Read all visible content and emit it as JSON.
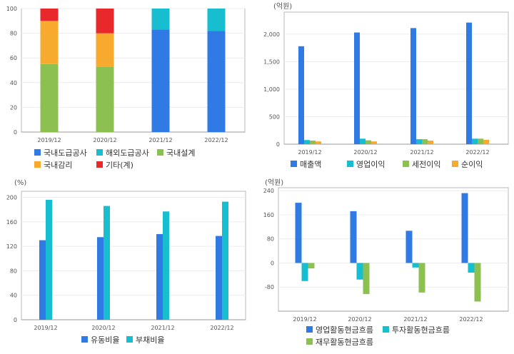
{
  "chart_data": [
    {
      "type": "bar",
      "stacked": true,
      "categories": [
        "2019/12",
        "2020/12",
        "2021/12",
        "2022/12"
      ],
      "ylim": [
        0,
        100
      ],
      "yticks": [
        "0",
        "20",
        "40",
        "60",
        "80",
        "100"
      ],
      "unit": "",
      "series": [
        {
          "name": "국내도급공사",
          "color": "#2f7ae5",
          "values": [
            0,
            0,
            83,
            82
          ]
        },
        {
          "name": "해외도급공사",
          "color": "#17bed0",
          "values": [
            0,
            0,
            17,
            18
          ]
        },
        {
          "name": "국내설계",
          "color": "#8cc152",
          "values": [
            55,
            53,
            0,
            0
          ]
        },
        {
          "name": "국내감리",
          "color": "#f8aa2f",
          "values": [
            35,
            27,
            0,
            0
          ]
        },
        {
          "name": "기타(계)",
          "color": "#e8282b",
          "values": [
            10,
            20,
            0,
            0
          ]
        }
      ]
    },
    {
      "type": "bar",
      "categories": [
        "2019/12",
        "2020/12",
        "2021/12",
        "2022/12"
      ],
      "ylim": [
        0,
        2400
      ],
      "yticks": [
        "0",
        "500",
        "1,000",
        "1,500",
        "2,000"
      ],
      "unit": "(억원)",
      "series": [
        {
          "name": "매출액",
          "color": "#2f7ae5",
          "values": [
            1780,
            2030,
            2110,
            2210
          ]
        },
        {
          "name": "영업이익",
          "color": "#17bed0",
          "values": [
            75,
            100,
            90,
            100
          ]
        },
        {
          "name": "세전이익",
          "color": "#8cc152",
          "values": [
            65,
            70,
            90,
            100
          ]
        },
        {
          "name": "순이익",
          "color": "#f8aa2f",
          "values": [
            50,
            50,
            65,
            80
          ]
        }
      ]
    },
    {
      "type": "bar",
      "categories": [
        "2019/12",
        "2020/12",
        "2021/12",
        "2022/12"
      ],
      "ylim": [
        0,
        210
      ],
      "yticks": [
        "0",
        "40",
        "80",
        "120",
        "160",
        "200"
      ],
      "unit": "(%)",
      "series": [
        {
          "name": "유동비율",
          "color": "#2f7ae5",
          "values": [
            130,
            135,
            140,
            137
          ]
        },
        {
          "name": "부채비율",
          "color": "#17bed0",
          "values": [
            196,
            186,
            177,
            193
          ]
        }
      ]
    },
    {
      "type": "bar",
      "categories": [
        "2019/12",
        "2020/12",
        "2021/12",
        "2022/12"
      ],
      "ylim": [
        -160,
        250
      ],
      "yticks": [
        "-80",
        "0",
        "80",
        "160",
        "240"
      ],
      "unit": "(억원)",
      "series": [
        {
          "name": "영업활동현금흐름",
          "color": "#2f7ae5",
          "values": [
            200,
            172,
            107,
            232
          ]
        },
        {
          "name": "투자활동현금흐름",
          "color": "#17bed0",
          "values": [
            -60,
            -55,
            -15,
            -32
          ]
        },
        {
          "name": "재무활동현금흐름",
          "color": "#8cc152",
          "values": [
            -18,
            -103,
            -98,
            -128
          ]
        }
      ]
    }
  ]
}
